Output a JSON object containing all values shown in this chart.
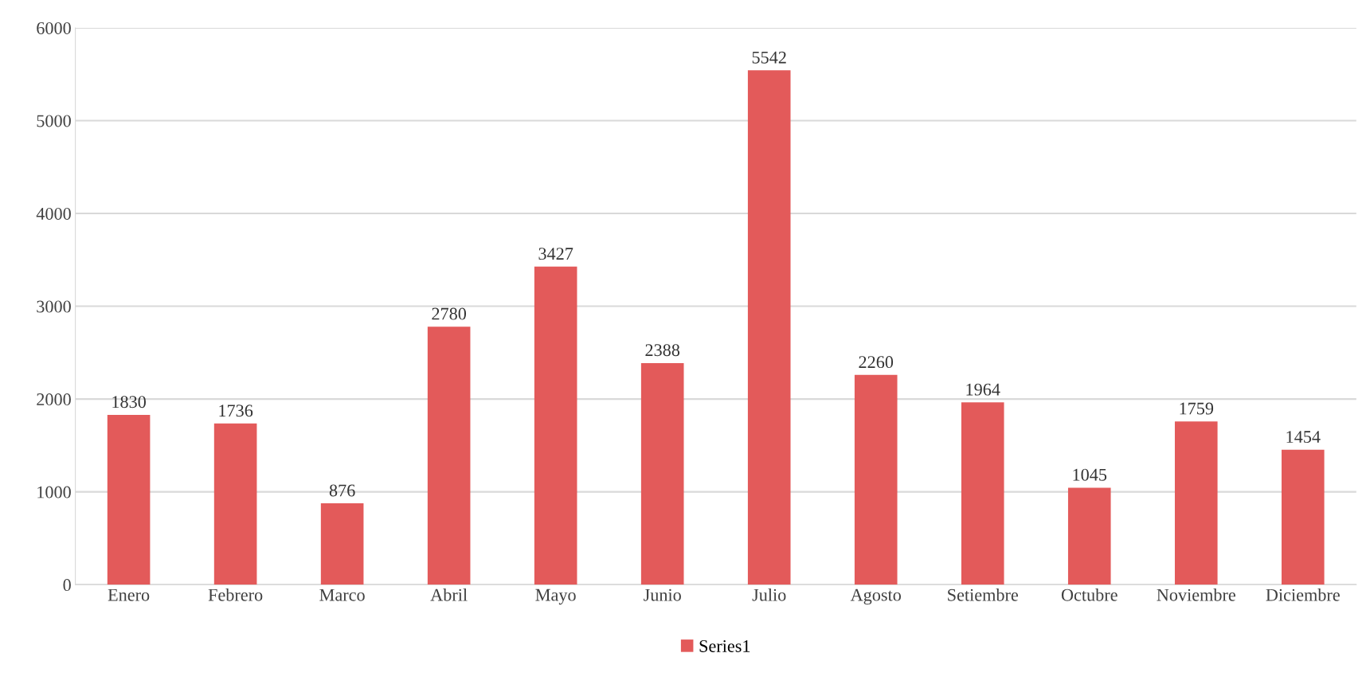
{
  "chart_data": {
    "type": "bar",
    "categories": [
      "Enero",
      "Febrero",
      "Marco",
      "Abril",
      "Mayo",
      "Junio",
      "Julio",
      "Agosto",
      "Setiembre",
      "Octubre",
      "Noviembre",
      "Diciembre"
    ],
    "series": [
      {
        "name": "Series1",
        "color": "#e35a5a",
        "values": [
          1830,
          1736,
          876,
          2780,
          3427,
          2388,
          5542,
          2260,
          1964,
          1045,
          1759,
          1454
        ]
      }
    ],
    "ylim": [
      0,
      6000
    ],
    "yticks": [
      0,
      1000,
      2000,
      3000,
      4000,
      5000,
      6000
    ],
    "grid": "y",
    "legend": "bottom",
    "data_labels": true
  }
}
